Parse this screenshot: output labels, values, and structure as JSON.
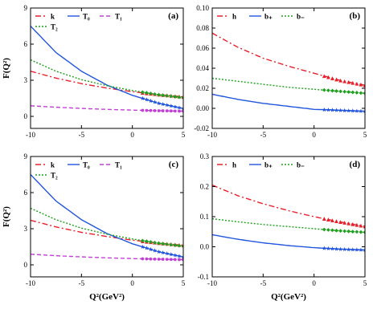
{
  "colors": {
    "red": "#e8202a",
    "blue": "#2255dd",
    "magenta": "#c23fd6",
    "green": "#1fa01f"
  },
  "axis_labels": {
    "x": "Q²(GeV²)",
    "y": "F(Q²)"
  },
  "chart_data": [
    {
      "type": "line",
      "panel_label": "(a)",
      "xlim": [
        -10,
        5
      ],
      "ylim": [
        -1,
        9
      ],
      "xticks": [
        -10,
        -5,
        0,
        5
      ],
      "yticks": [
        0,
        3,
        6,
        9
      ],
      "xlabel": "",
      "ylabel": "F(Q²)",
      "legend": [
        {
          "name": "k",
          "color": "red",
          "style": "dashdot"
        },
        {
          "name": "T₀",
          "color": "blue",
          "style": "solid"
        },
        {
          "name": "T₁",
          "color": "magenta",
          "style": "dashed"
        },
        {
          "name": "T₂",
          "color": "green",
          "style": "dotted"
        }
      ],
      "series": [
        {
          "name": "k",
          "color": "red",
          "style": "dashdot",
          "marker": "triangle",
          "x": [
            -10,
            -7.5,
            -5,
            -2.5,
            0,
            2.5,
            5
          ],
          "y": [
            3.75,
            3.18,
            2.72,
            2.35,
            2.05,
            1.82,
            1.62
          ]
        },
        {
          "name": "T₀",
          "color": "blue",
          "style": "solid",
          "marker": "star",
          "x": [
            -10,
            -7.5,
            -5,
            -2.5,
            0,
            2.5,
            5
          ],
          "y": [
            7.5,
            5.3,
            3.75,
            2.6,
            1.75,
            1.1,
            0.65
          ]
        },
        {
          "name": "T₁",
          "color": "magenta",
          "style": "dashed",
          "marker": "circle",
          "x": [
            -10,
            -7.5,
            -5,
            -2.5,
            0,
            2.5,
            5
          ],
          "y": [
            0.88,
            0.76,
            0.66,
            0.58,
            0.52,
            0.47,
            0.43
          ]
        },
        {
          "name": "T₂",
          "color": "green",
          "style": "dotted",
          "marker": "diamond",
          "x": [
            -10,
            -7.5,
            -5,
            -2.5,
            0,
            2.5,
            5
          ],
          "y": [
            4.7,
            3.75,
            3.05,
            2.55,
            2.15,
            1.8,
            1.55
          ]
        }
      ]
    },
    {
      "type": "line",
      "panel_label": "(b)",
      "xlim": [
        -10,
        5
      ],
      "ylim": [
        -0.02,
        0.1
      ],
      "xticks": [
        -10,
        -5,
        0,
        5
      ],
      "yticks": [
        -0.02,
        0,
        0.02,
        0.04,
        0.06,
        0.08,
        0.1
      ],
      "ytick_labels": [
        "-0.02",
        "0.00",
        "0.02",
        "0.04",
        "0.06",
        "0.08",
        "0.10"
      ],
      "xlabel": "",
      "ylabel": "",
      "legend": [
        {
          "name": "h",
          "color": "red",
          "style": "dashdot"
        },
        {
          "name": "b₊",
          "color": "blue",
          "style": "solid"
        },
        {
          "name": "b₋",
          "color": "green",
          "style": "dotted"
        }
      ],
      "series": [
        {
          "name": "h",
          "color": "red",
          "style": "dashdot",
          "marker": "triangle",
          "x": [
            -10,
            -7.5,
            -5,
            -2.5,
            0,
            2.5,
            5
          ],
          "y": [
            0.075,
            0.061,
            0.05,
            0.042,
            0.035,
            0.028,
            0.023
          ]
        },
        {
          "name": "b₊",
          "color": "blue",
          "style": "solid",
          "marker": "star",
          "x": [
            -10,
            -7.5,
            -5,
            -2.5,
            0,
            2.5,
            5
          ],
          "y": [
            0.014,
            0.009,
            0.005,
            0.002,
            -0.001,
            -0.002,
            -0.003
          ]
        },
        {
          "name": "b₋",
          "color": "green",
          "style": "dotted",
          "marker": "diamond",
          "x": [
            -10,
            -7.5,
            -5,
            -2.5,
            0,
            2.5,
            5
          ],
          "y": [
            0.03,
            0.027,
            0.024,
            0.021,
            0.019,
            0.017,
            0.015
          ]
        }
      ]
    },
    {
      "type": "line",
      "panel_label": "(c)",
      "xlim": [
        -10,
        5
      ],
      "ylim": [
        -1,
        9
      ],
      "xticks": [
        -10,
        -5,
        0,
        5
      ],
      "yticks": [
        0,
        3,
        6,
        9
      ],
      "xlabel": "Q²(GeV²)",
      "ylabel": "F(Q²)",
      "legend": [
        {
          "name": "k",
          "color": "red",
          "style": "dashdot"
        },
        {
          "name": "T₀",
          "color": "blue",
          "style": "solid"
        },
        {
          "name": "T₁",
          "color": "magenta",
          "style": "dashed"
        },
        {
          "name": "T₂",
          "color": "green",
          "style": "dotted"
        }
      ],
      "series": [
        {
          "name": "k",
          "color": "red",
          "style": "dashdot",
          "marker": "triangle",
          "x": [
            -10,
            -7.5,
            -5,
            -2.5,
            0,
            2.5,
            5
          ],
          "y": [
            3.7,
            3.15,
            2.7,
            2.35,
            2.05,
            1.82,
            1.62
          ]
        },
        {
          "name": "T₀",
          "color": "blue",
          "style": "solid",
          "marker": "star",
          "x": [
            -10,
            -7.5,
            -5,
            -2.5,
            0,
            2.5,
            5
          ],
          "y": [
            7.5,
            5.3,
            3.75,
            2.6,
            1.75,
            1.1,
            0.65
          ]
        },
        {
          "name": "T₁",
          "color": "magenta",
          "style": "dashed",
          "marker": "circle",
          "x": [
            -10,
            -7.5,
            -5,
            -2.5,
            0,
            2.5,
            5
          ],
          "y": [
            0.88,
            0.76,
            0.66,
            0.58,
            0.52,
            0.47,
            0.43
          ]
        },
        {
          "name": "T₂",
          "color": "green",
          "style": "dotted",
          "marker": "diamond",
          "x": [
            -10,
            -7.5,
            -5,
            -2.5,
            0,
            2.5,
            5
          ],
          "y": [
            4.7,
            3.75,
            3.05,
            2.55,
            2.15,
            1.8,
            1.55
          ]
        }
      ]
    },
    {
      "type": "line",
      "panel_label": "(d)",
      "xlim": [
        -10,
        5
      ],
      "ylim": [
        -0.1,
        0.3
      ],
      "xticks": [
        -10,
        -5,
        0,
        5
      ],
      "yticks": [
        -0.1,
        0,
        0.1,
        0.2,
        0.3
      ],
      "ytick_labels": [
        "-0.1",
        "0.0",
        "0.1",
        "0.2",
        "0.3"
      ],
      "xlabel": "Q²(GeV²)",
      "ylabel": "",
      "legend": [
        {
          "name": "h",
          "color": "red",
          "style": "dashdot"
        },
        {
          "name": "b₊",
          "color": "blue",
          "style": "solid"
        },
        {
          "name": "b₋",
          "color": "green",
          "style": "dotted"
        }
      ],
      "series": [
        {
          "name": "h",
          "color": "red",
          "style": "dashdot",
          "marker": "triangle",
          "x": [
            -10,
            -7.5,
            -5,
            -2.5,
            0,
            2.5,
            5
          ],
          "y": [
            0.205,
            0.17,
            0.143,
            0.12,
            0.1,
            0.083,
            0.068
          ]
        },
        {
          "name": "b₊",
          "color": "blue",
          "style": "solid",
          "marker": "star",
          "x": [
            -10,
            -7.5,
            -5,
            -2.5,
            0,
            2.5,
            5
          ],
          "y": [
            0.04,
            0.025,
            0.013,
            0.004,
            -0.003,
            -0.008,
            -0.011
          ]
        },
        {
          "name": "b₋",
          "color": "green",
          "style": "dotted",
          "marker": "diamond",
          "x": [
            -10,
            -7.5,
            -5,
            -2.5,
            0,
            2.5,
            5
          ],
          "y": [
            0.093,
            0.083,
            0.074,
            0.067,
            0.06,
            0.053,
            0.048
          ]
        }
      ]
    }
  ]
}
